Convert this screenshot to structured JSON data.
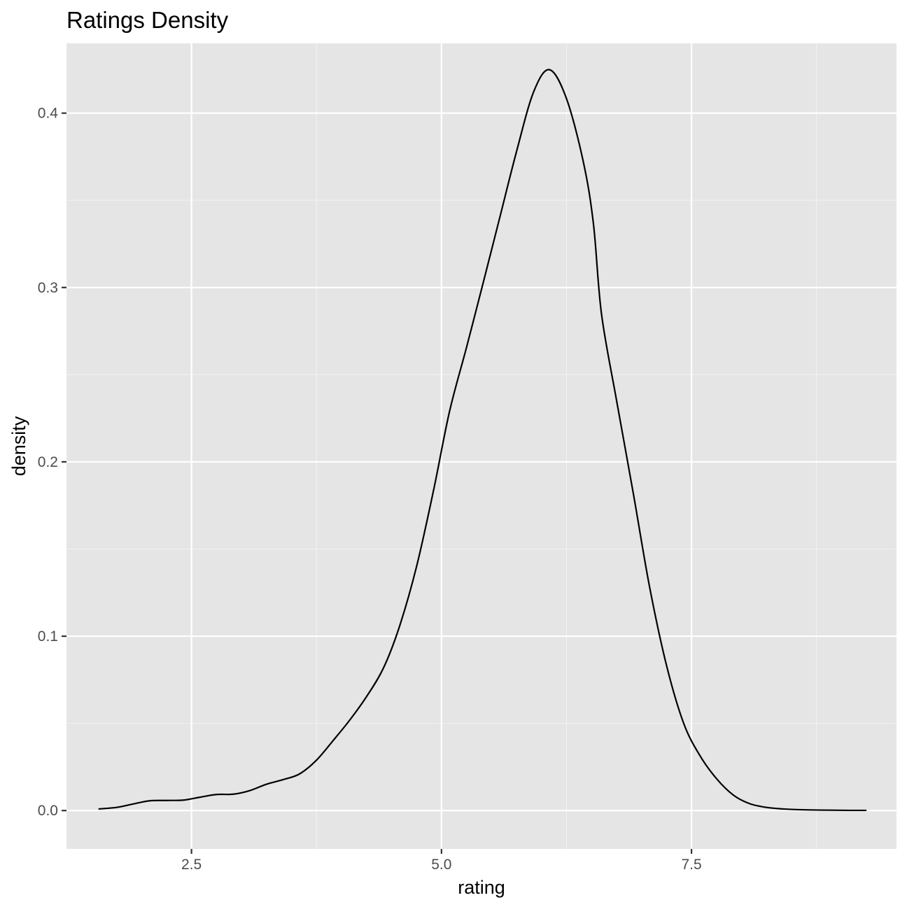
{
  "chart_data": {
    "type": "area",
    "title": "Ratings Density",
    "xlabel": "rating",
    "ylabel": "density",
    "xlim": [
      1.25,
      9.55
    ],
    "ylim": [
      -0.022,
      0.44
    ],
    "x_ticks": [
      2.5,
      5.0,
      7.5
    ],
    "x_tick_labels": [
      "2.5",
      "5.0",
      "7.5"
    ],
    "x_minor_ticks": [
      1.25,
      3.75,
      6.25,
      8.75
    ],
    "y_ticks": [
      0.0,
      0.1,
      0.2,
      0.3,
      0.4
    ],
    "y_tick_labels": [
      "0.0",
      "0.1",
      "0.2",
      "0.3",
      "0.4"
    ],
    "y_minor_ticks": [
      0.05,
      0.15,
      0.25,
      0.35
    ],
    "grid": true,
    "series": [
      {
        "x": [
          1.57,
          1.75,
          1.92,
          2.08,
          2.25,
          2.42,
          2.58,
          2.75,
          2.92,
          3.08,
          3.25,
          3.42,
          3.58,
          3.75,
          3.92,
          4.08,
          4.25,
          4.42,
          4.58,
          4.75,
          4.92,
          5.08,
          5.25,
          5.42,
          5.58,
          5.75,
          5.92,
          6.08,
          6.25,
          6.42,
          6.52,
          6.6,
          6.75,
          6.92,
          7.08,
          7.25,
          7.42,
          7.58,
          7.75,
          7.92,
          8.08,
          8.25,
          8.42,
          8.58,
          8.75,
          8.92,
          9.08,
          9.25
        ],
        "y": [
          0.0009,
          0.0018,
          0.0038,
          0.0056,
          0.0058,
          0.006,
          0.0076,
          0.0092,
          0.0094,
          0.0114,
          0.0151,
          0.0178,
          0.021,
          0.0289,
          0.0404,
          0.0517,
          0.0653,
          0.0818,
          0.1056,
          0.1398,
          0.1835,
          0.2288,
          0.2656,
          0.3034,
          0.3395,
          0.3779,
          0.412,
          0.4249,
          0.4083,
          0.3716,
          0.3362,
          0.2848,
          0.2354,
          0.1813,
          0.1285,
          0.0833,
          0.0503,
          0.0319,
          0.0183,
          0.0088,
          0.004,
          0.0018,
          0.0009,
          0.0005,
          0.0003,
          0.0002,
          0.0001,
          0.0001
        ],
        "color": "#000000"
      }
    ],
    "colors": {
      "panel_background": "#E5E5E5",
      "grid_major": "#FFFFFF",
      "grid_minor": "#F2F2F2",
      "tick_label": "#4D4D4D",
      "tick_mark": "#333333",
      "text": "#000000"
    }
  }
}
